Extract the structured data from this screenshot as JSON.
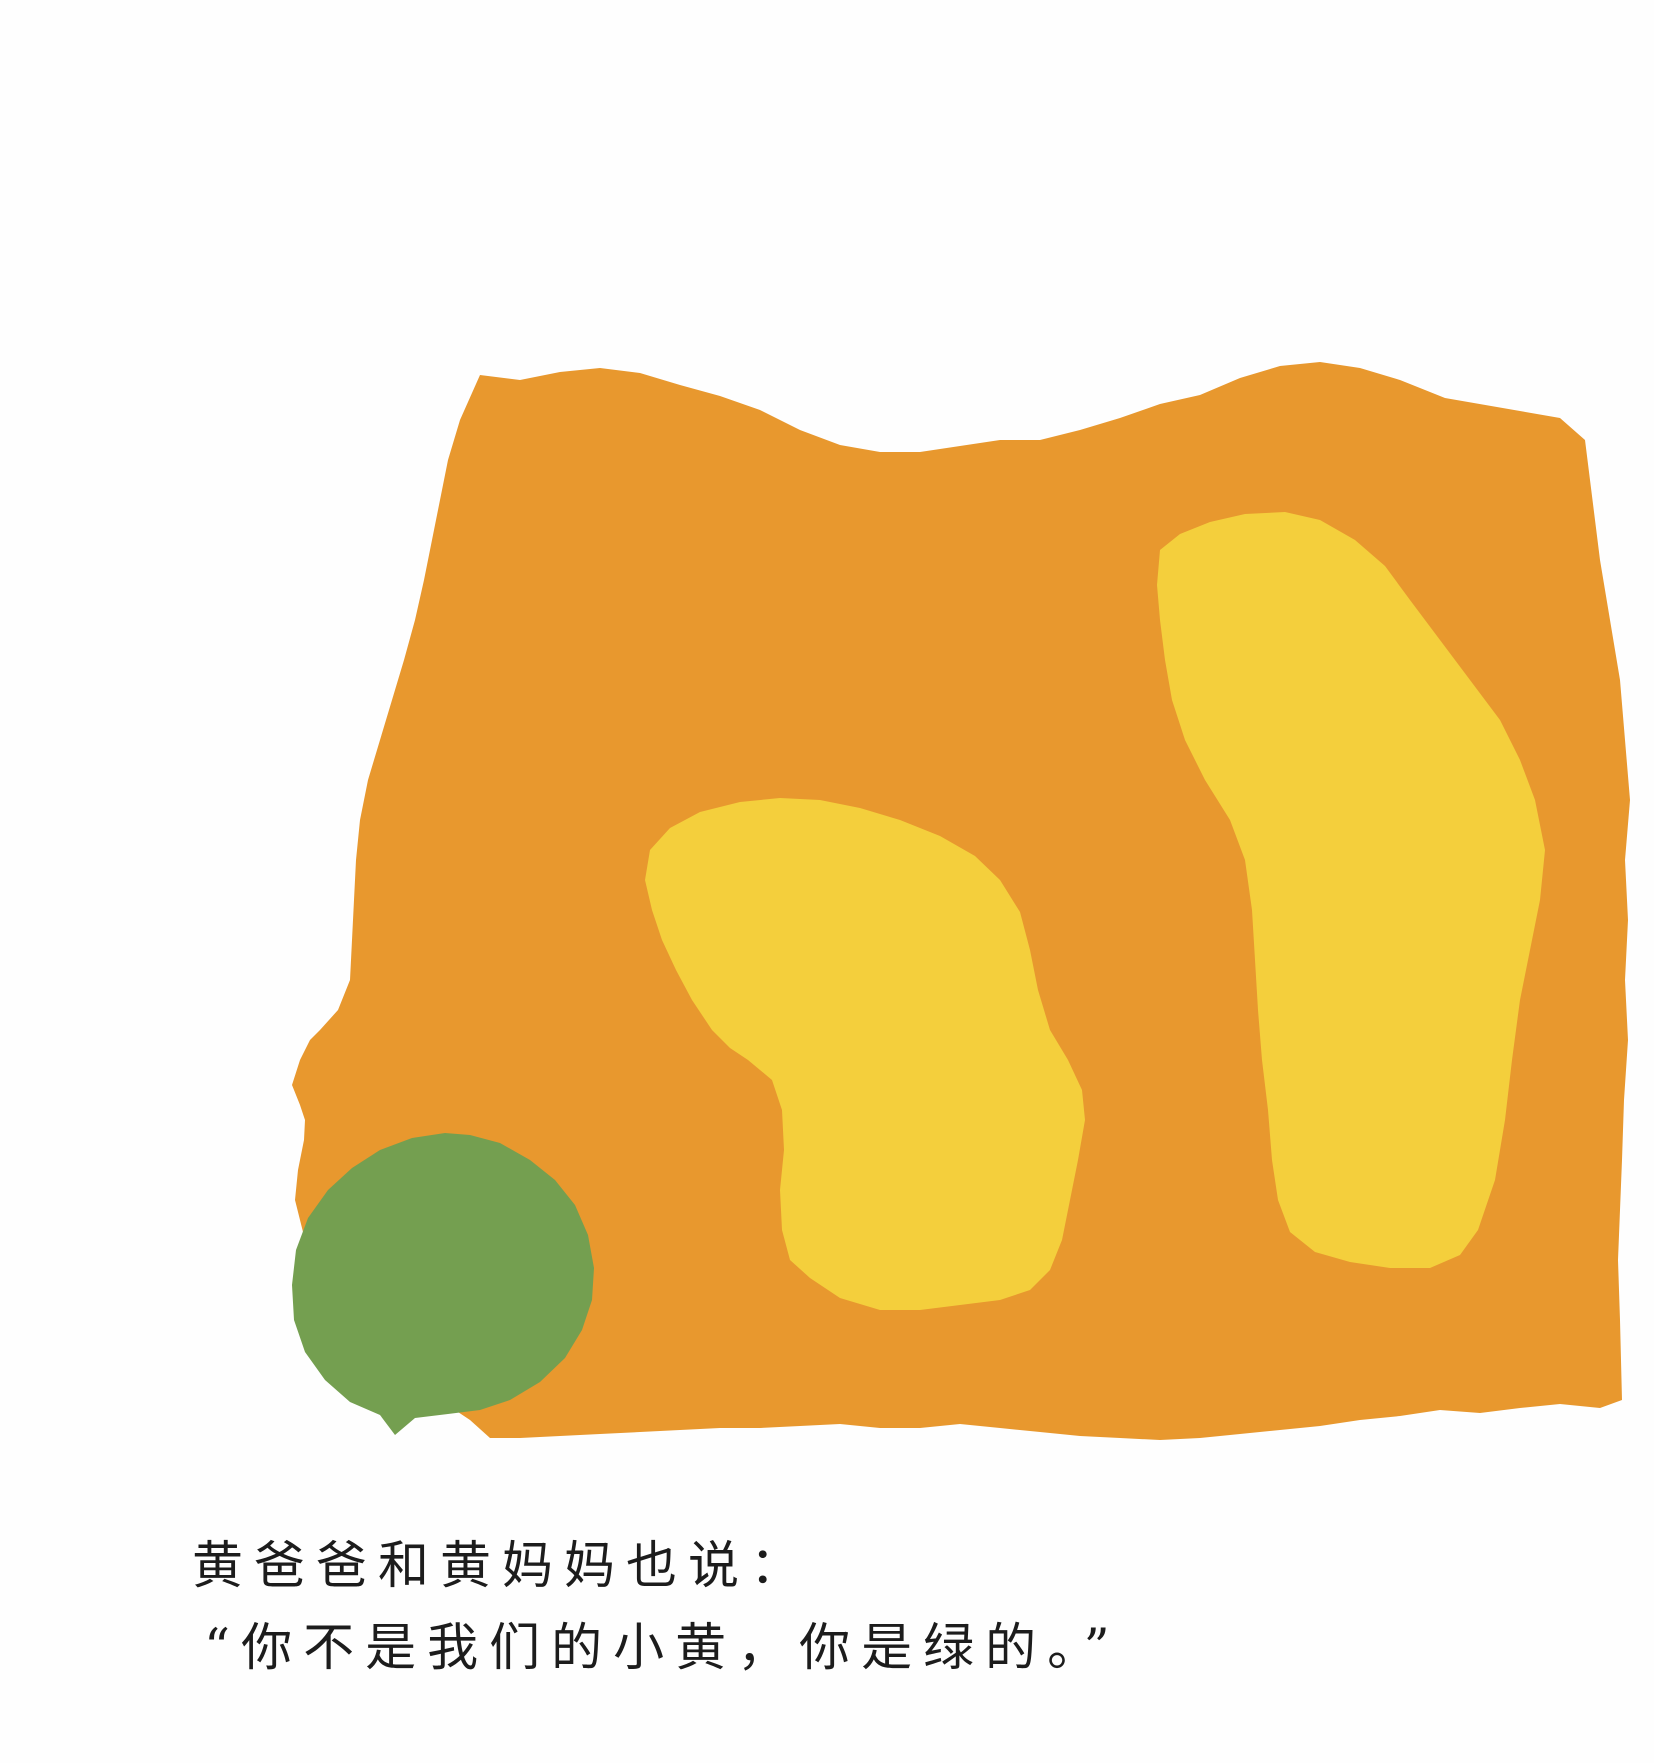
{
  "page": {
    "background_color": "#fefefe"
  },
  "illustration": {
    "orange_paper_color": "#e8982e",
    "yellow_blob_color": "#f4cf3c",
    "green_circle_color": "#749f50"
  },
  "text": {
    "line1": "黄爸爸和黄妈妈也说：",
    "line2": "“你不是我们的小黄，你是绿的。”"
  }
}
